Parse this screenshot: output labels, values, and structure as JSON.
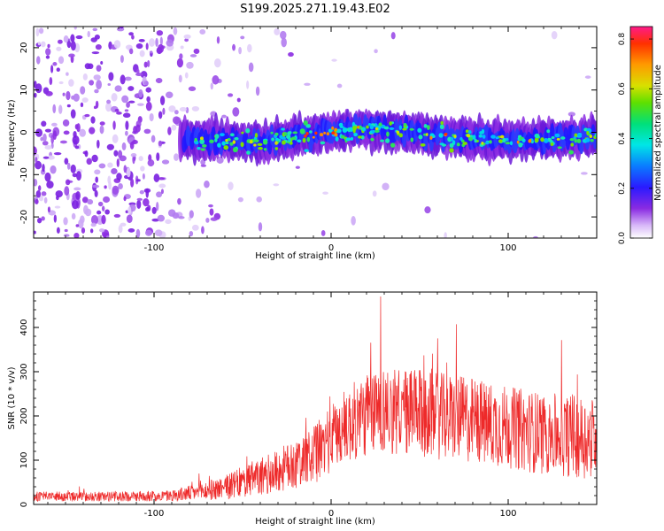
{
  "title": "S199.2025.271.19.43.E02",
  "colors": {
    "series_line": "#ee2a2a",
    "noise_purple": "#7a1fe0",
    "axis": "#000000"
  },
  "chart_data": [
    {
      "id": "spectrogram",
      "type": "heatmap",
      "xlabel": "Height of straight line (km)",
      "ylabel": "Frequency (Hz)",
      "xlim": [
        -168,
        150
      ],
      "ylim": [
        -25,
        25
      ],
      "xticks": [
        -100,
        0,
        100
      ],
      "xtick_labels": [
        "-100",
        "0",
        "100"
      ],
      "yticks": [
        -20,
        -10,
        0,
        10,
        20
      ],
      "ytick_labels": [
        "-20",
        "-10",
        "0",
        "10",
        "20"
      ],
      "signal_band": {
        "x_start": -85,
        "x_end": 150,
        "center_freq_at_x": [
          [
            -85,
            -1.5
          ],
          [
            -40,
            -2.5
          ],
          [
            0,
            0
          ],
          [
            20,
            1
          ],
          [
            60,
            -1
          ],
          [
            100,
            -2
          ],
          [
            150,
            -1
          ]
        ],
        "half_width_hz": 3
      },
      "peak_regions_x": [
        [
          -15,
          20
        ],
        [
          55,
          65
        ],
        [
          105,
          115
        ]
      ],
      "colorbar": {
        "label": "Normalized spectral amplitude",
        "range": [
          0,
          0.85
        ],
        "ticks": [
          0,
          0.2,
          0.4,
          0.6,
          0.8
        ],
        "tick_labels": [
          "0.0",
          "0.2",
          "0.4",
          "0.6",
          "0.8"
        ]
      }
    },
    {
      "id": "snr",
      "type": "line",
      "xlabel": "Height of straight line (km)",
      "ylabel": "SNR (10 * v/v)",
      "xlim": [
        -168,
        150
      ],
      "ylim": [
        0,
        480
      ],
      "xticks": [
        -100,
        0,
        100
      ],
      "xtick_labels": [
        "-100",
        "0",
        "100"
      ],
      "yticks": [
        0,
        100,
        200,
        300,
        400
      ],
      "ytick_labels": [
        "0",
        "100",
        "200",
        "300",
        "400"
      ],
      "series": [
        {
          "name": "SNR",
          "envelope_x": [
            -168,
            -120,
            -90,
            -75,
            -60,
            -45,
            -30,
            -10,
            0,
            10,
            25,
            40,
            60,
            80,
            100,
            120,
            150
          ],
          "envelope_mean": [
            18,
            18,
            20,
            28,
            38,
            55,
            75,
            110,
            150,
            180,
            215,
            210,
            200,
            190,
            175,
            160,
            150
          ],
          "envelope_spread": [
            10,
            10,
            12,
            18,
            25,
            35,
            45,
            60,
            70,
            80,
            90,
            90,
            90,
            90,
            85,
            85,
            85
          ],
          "approx_max": 470,
          "approx_max_x": 28
        }
      ]
    }
  ]
}
